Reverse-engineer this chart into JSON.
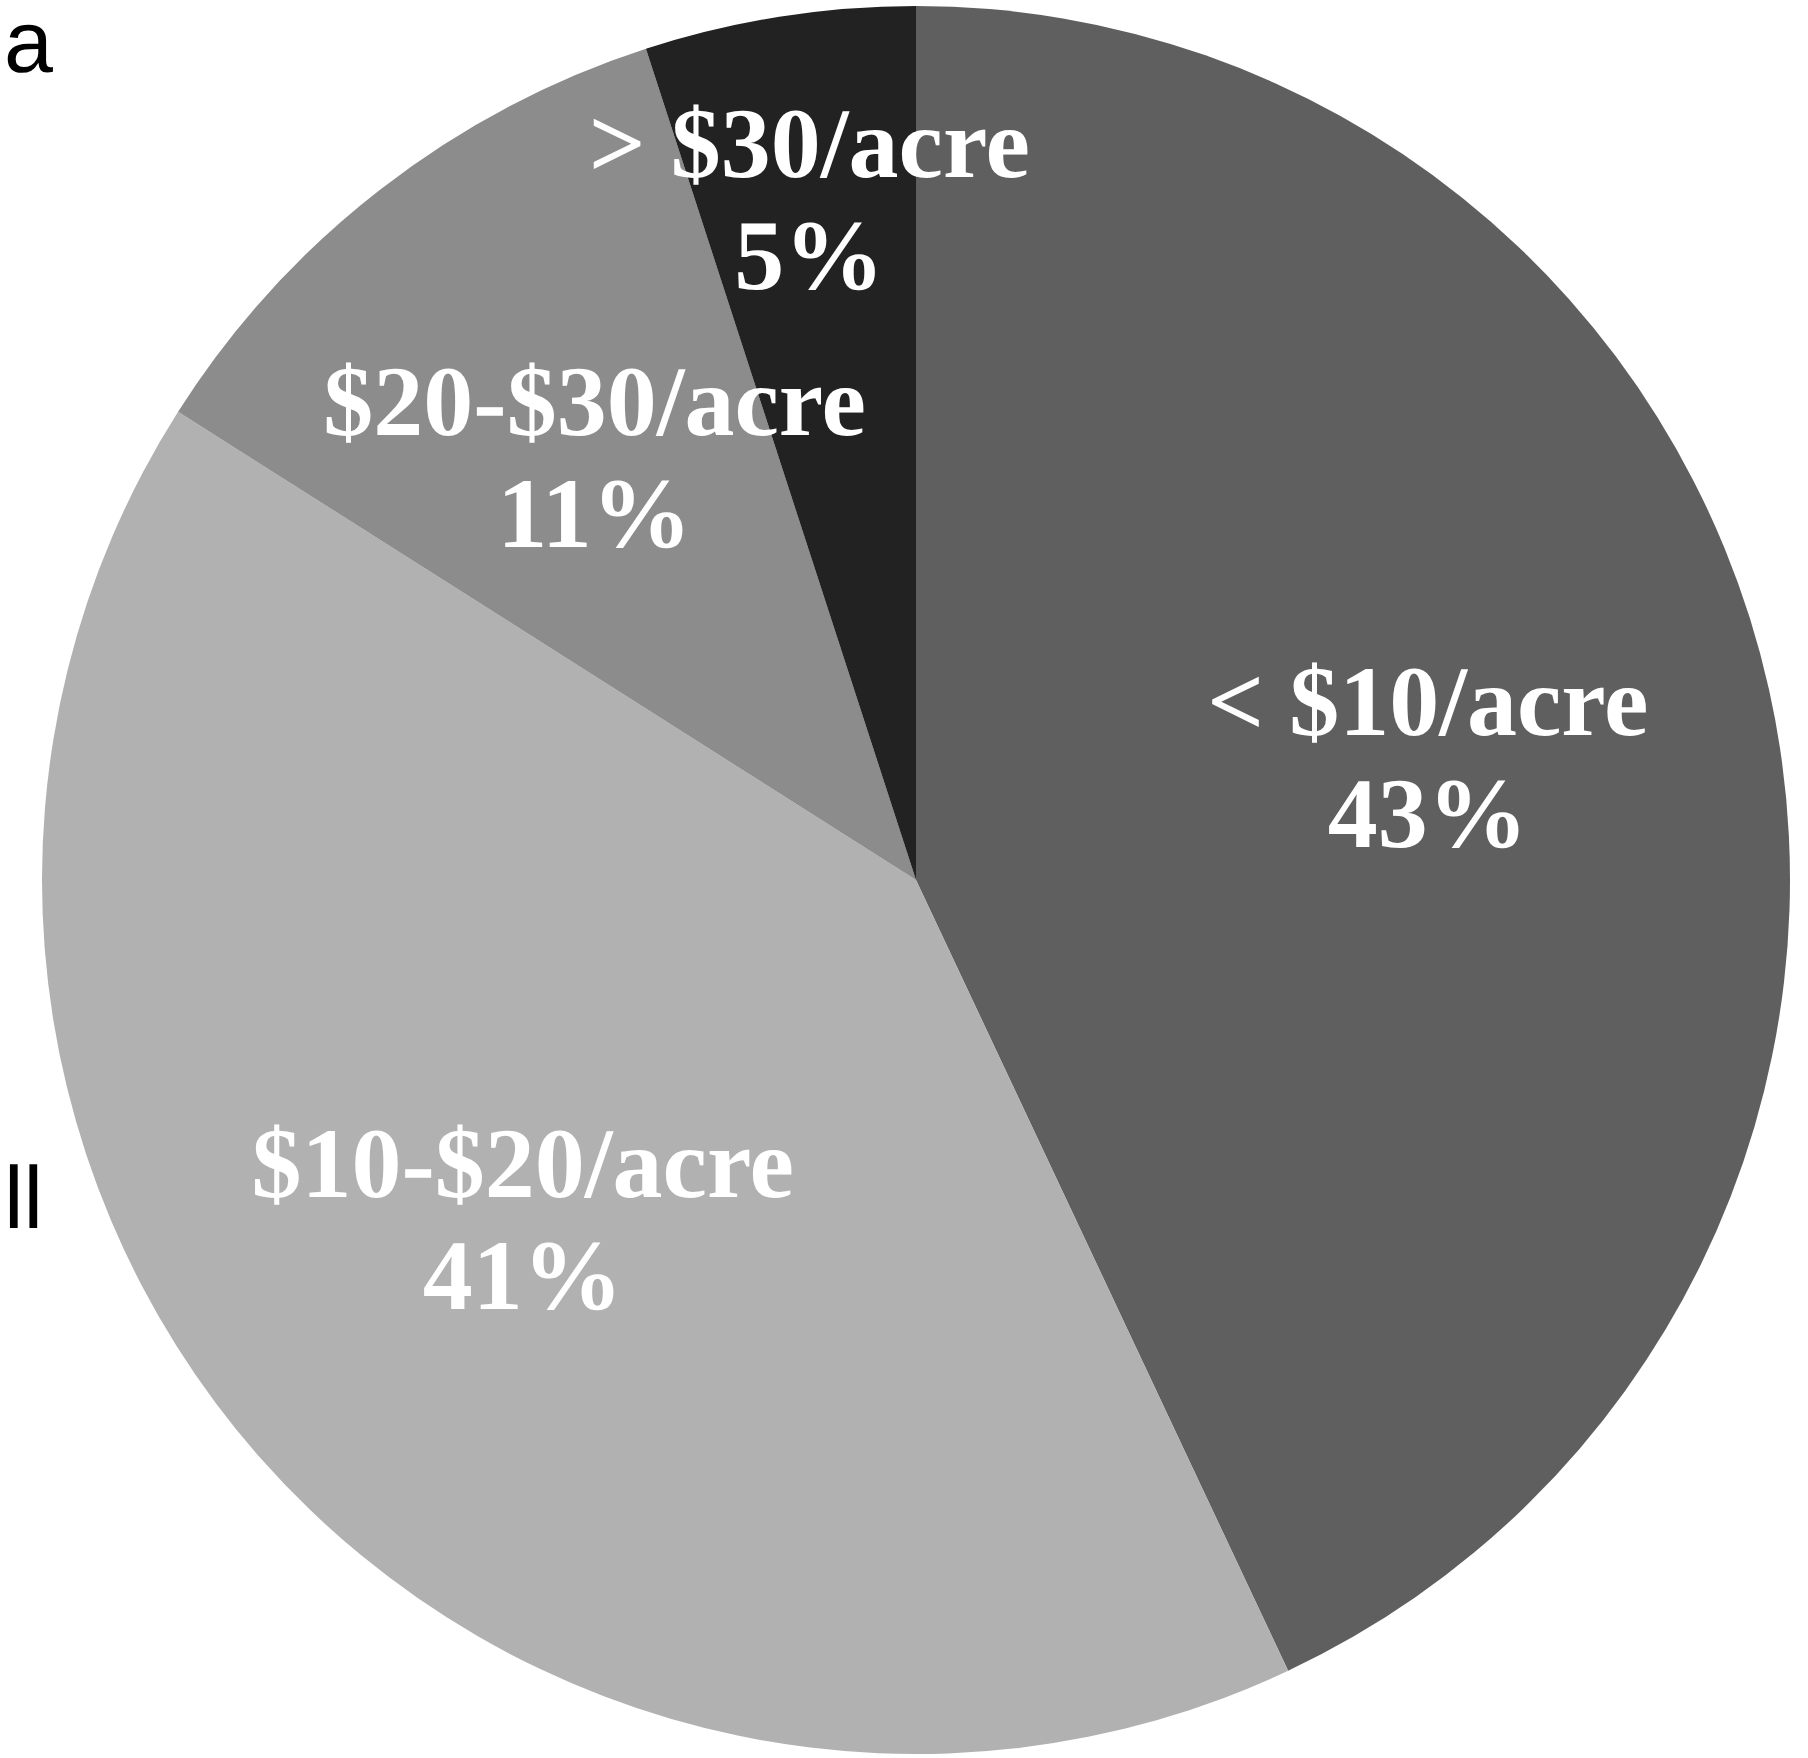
{
  "chart_data": {
    "type": "pie",
    "categories": [
      "< $10/acre",
      "$10-$20/acre",
      "$20-$30/acre",
      "> $30/acre"
    ],
    "values": [
      43,
      41,
      11,
      5
    ],
    "value_labels": [
      "43%",
      "41%",
      "11%",
      "5%"
    ],
    "colors": [
      "#5f5f5f",
      "#b1b1b1",
      "#8c8c8c",
      "#222222"
    ],
    "legend": false,
    "annotations": [
      "a",
      "ll"
    ]
  }
}
